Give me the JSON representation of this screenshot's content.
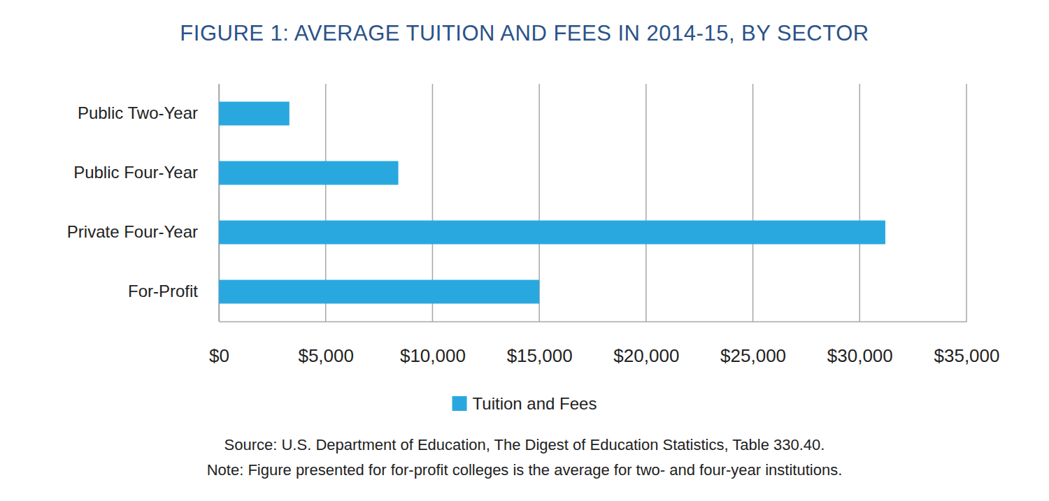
{
  "chart_data": {
    "type": "bar",
    "orientation": "horizontal",
    "title": "FIGURE 1: AVERAGE TUITION AND FEES IN 2014-15, BY SECTOR",
    "categories": [
      "Public Two-Year",
      "Public Four-Year",
      "Private Four-Year",
      "For-Profit"
    ],
    "series": [
      {
        "name": "Tuition and Fees",
        "color": "#29a8e0",
        "values": [
          3300,
          8400,
          31200,
          15000
        ]
      }
    ],
    "xlim": [
      0,
      35000
    ],
    "xticks": [
      {
        "value": 0,
        "label": "$0"
      },
      {
        "value": 5000,
        "label": "$5,000"
      },
      {
        "value": 10000,
        "label": "$10,000"
      },
      {
        "value": 15000,
        "label": "$15,000"
      },
      {
        "value": 20000,
        "label": "$20,000"
      },
      {
        "value": 25000,
        "label": "$25,000"
      },
      {
        "value": 30000,
        "label": "$30,000"
      },
      {
        "value": 35000,
        "label": "$35,000"
      }
    ],
    "grid": true,
    "legend": "bottom",
    "annotations": [
      "Source: U.S. Department of Education, The Digest of Education Statistics, Table 330.40.",
      "Note: Figure presented for for-profit colleges is the average for two- and four-year institutions."
    ]
  }
}
